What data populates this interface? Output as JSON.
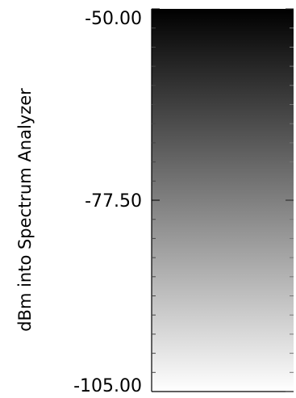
{
  "chart_data": {
    "type": "heatmap",
    "title": "",
    "ylabel": "dBm into Spectrum Analyzer",
    "ylim": [
      -105.0,
      -50.0
    ],
    "colormap": "grayscale",
    "color_low": "#ffffff",
    "color_high": "#000000",
    "tick_labels": [
      "-50.00",
      "-77.50",
      "-105.00"
    ],
    "tick_values": [
      -50.0,
      -77.5,
      -105.0
    ],
    "minor_ticks_per_major": 10
  }
}
